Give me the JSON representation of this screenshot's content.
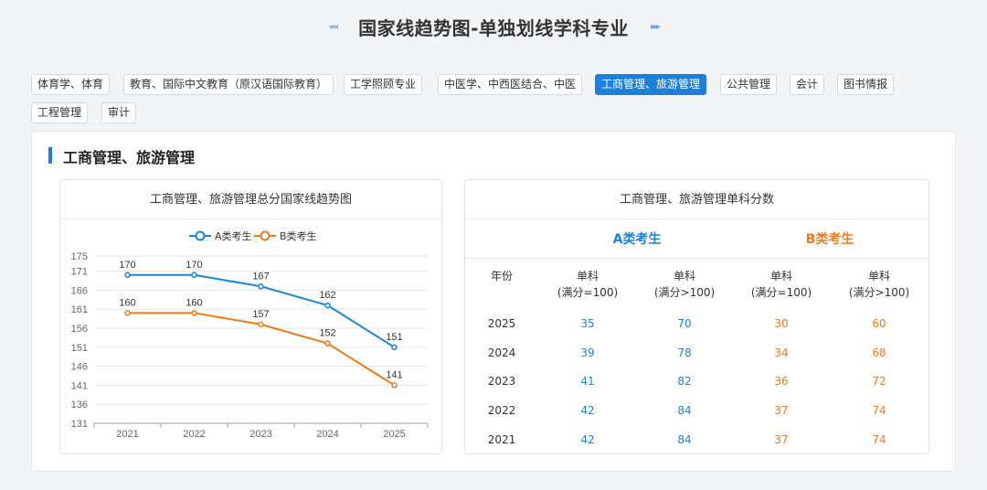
{
  "header": {
    "title": "国家线趋势图-单独划线学科专业",
    "left_arrows": "◂◂◂",
    "right_arrows": "▸▸▸"
  },
  "tabs": [
    {
      "label": "体育学、体育",
      "active": false
    },
    {
      "label": "教育、国际中文教育（原汉语国际教育）",
      "active": false
    },
    {
      "label": "工学照顾专业",
      "active": false
    },
    {
      "label": "中医学、中西医结合、中医",
      "active": false
    },
    {
      "label": "工商管理、旅游管理",
      "active": true
    },
    {
      "label": "公共管理",
      "active": false
    },
    {
      "label": "会计",
      "active": false
    },
    {
      "label": "图书情报",
      "active": false
    },
    {
      "label": "工程管理",
      "active": false
    },
    {
      "label": "审计",
      "active": false
    }
  ],
  "section": {
    "title": "工商管理、旅游管理"
  },
  "chart_card": {
    "title": "工商管理、旅游管理总分国家线趋势图"
  },
  "chart_data": {
    "type": "line",
    "x": [
      "2021",
      "2022",
      "2023",
      "2024",
      "2025"
    ],
    "series": [
      {
        "name": "A类考生",
        "values": [
          170,
          170,
          167,
          162,
          151
        ],
        "color": "#1d86d6"
      },
      {
        "name": "B类考生",
        "values": [
          160,
          160,
          157,
          152,
          141
        ],
        "color": "#ef7a1a"
      }
    ],
    "yticks": [
      131,
      136,
      141,
      146,
      151,
      156,
      161,
      166,
      171,
      175
    ],
    "ylim": [
      131,
      175
    ],
    "legend": "top-center",
    "grid": true,
    "title": "",
    "xlabel": "",
    "ylabel": ""
  },
  "table_card": {
    "title": "工商管理、旅游管理单科分数",
    "group_a": "A类考生",
    "group_b": "B类考生",
    "headers": [
      {
        "line1": "年份",
        "line2": ""
      },
      {
        "line1": "单科",
        "line2": "(满分=100)"
      },
      {
        "line1": "单科",
        "line2": "(满分>100)"
      },
      {
        "line1": "单科",
        "line2": "(满分=100)"
      },
      {
        "line1": "单科",
        "line2": "(满分>100)"
      }
    ],
    "rows": [
      {
        "year": "2025",
        "a100": "35",
        "a_over": "70",
        "b100": "30",
        "b_over": "60"
      },
      {
        "year": "2024",
        "a100": "39",
        "a_over": "78",
        "b100": "34",
        "b_over": "68"
      },
      {
        "year": "2023",
        "a100": "41",
        "a_over": "82",
        "b100": "36",
        "b_over": "72"
      },
      {
        "year": "2022",
        "a100": "42",
        "a_over": "84",
        "b100": "37",
        "b_over": "74"
      },
      {
        "year": "2021",
        "a100": "42",
        "a_over": "84",
        "b100": "37",
        "b_over": "74"
      }
    ]
  }
}
